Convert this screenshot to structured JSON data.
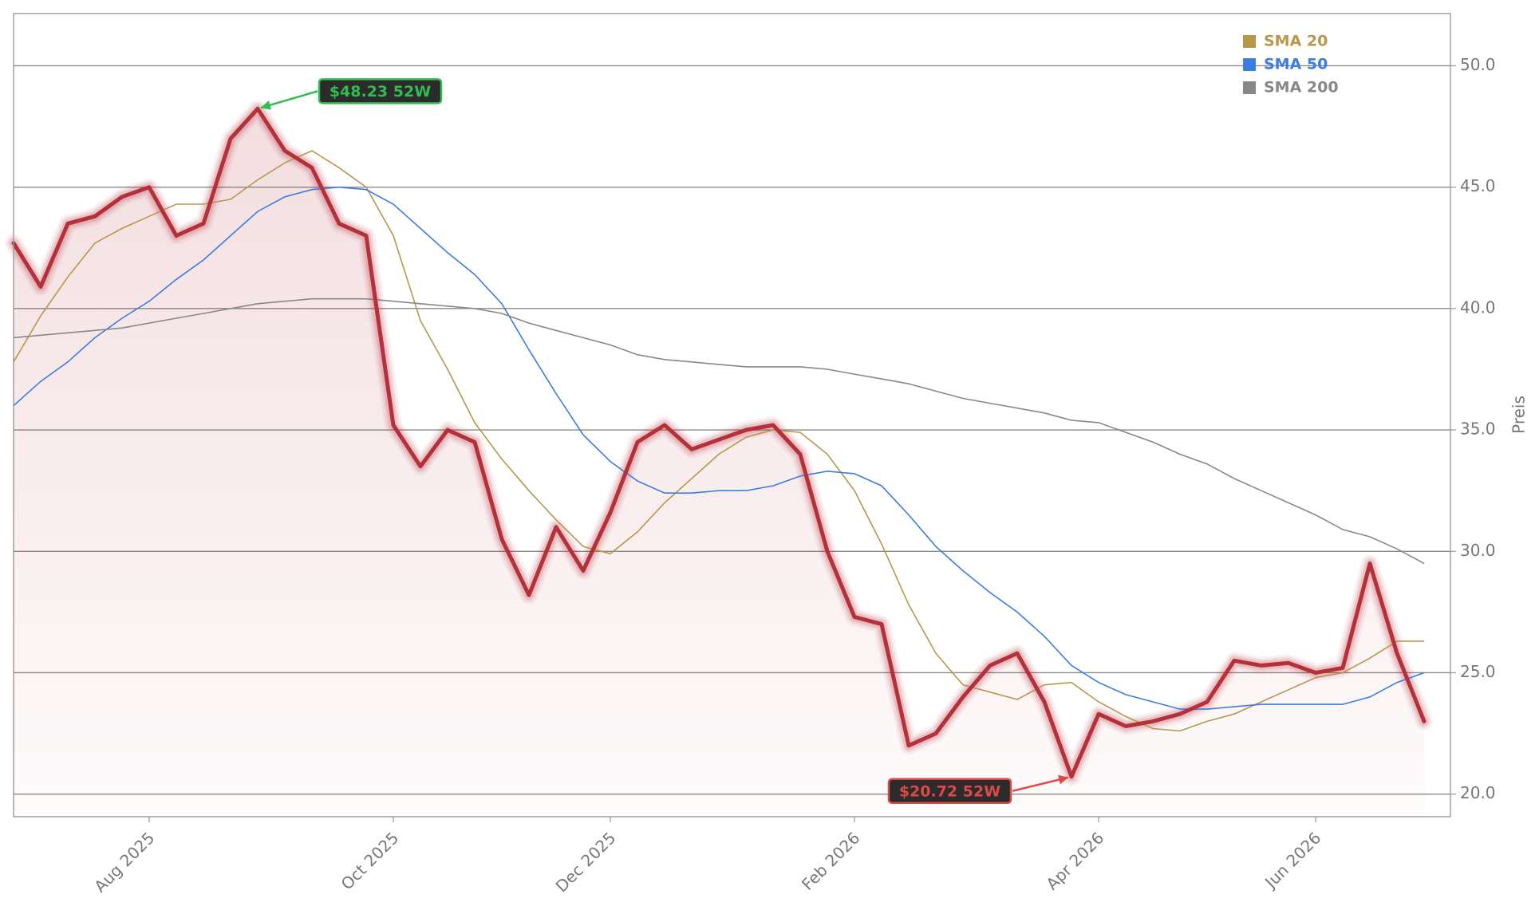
{
  "chart_data": {
    "type": "line",
    "y_label": "Preis",
    "categories": [
      null,
      null,
      null,
      null,
      null,
      "Aug 2025",
      null,
      null,
      null,
      null,
      null,
      null,
      null,
      null,
      "Oct 2025",
      null,
      null,
      null,
      null,
      null,
      null,
      null,
      "Dec 2025",
      null,
      null,
      null,
      null,
      null,
      null,
      null,
      null,
      "Feb 2026",
      null,
      null,
      null,
      null,
      null,
      null,
      null,
      null,
      "Apr 2026",
      null,
      null,
      null,
      null,
      null,
      null,
      null,
      "Jun 2026",
      null,
      null,
      null,
      null
    ],
    "price": {
      "color": "#b5303a",
      "values": [
        42.7,
        40.9,
        43.5,
        43.8,
        44.6,
        45.0,
        43.0,
        43.5,
        47.0,
        48.23,
        46.5,
        45.8,
        43.5,
        43.0,
        35.2,
        33.5,
        35.0,
        34.5,
        30.5,
        28.2,
        31.0,
        29.2,
        31.6,
        34.5,
        35.2,
        34.2,
        34.6,
        35.0,
        35.2,
        34.0,
        30.0,
        27.3,
        27.0,
        22.0,
        22.5,
        24.0,
        25.3,
        25.8,
        23.8,
        20.72,
        23.3,
        22.8,
        23.0,
        23.3,
        23.8,
        25.5,
        25.3,
        25.4,
        25.0,
        25.2,
        29.5,
        25.8,
        23.0
      ]
    },
    "series": [
      {
        "name": "SMA 20",
        "color": "#b8964a",
        "values": [
          37.8,
          39.7,
          41.3,
          42.7,
          43.3,
          43.8,
          44.3,
          44.3,
          44.5,
          45.3,
          46.0,
          46.5,
          45.8,
          45.0,
          43.0,
          39.5,
          37.5,
          35.3,
          33.8,
          32.5,
          31.3,
          30.2,
          29.9,
          30.8,
          32.0,
          33.0,
          34.0,
          34.7,
          35.0,
          34.9,
          34.0,
          32.5,
          30.3,
          27.8,
          25.8,
          24.5,
          24.2,
          23.9,
          24.5,
          24.6,
          23.8,
          23.2,
          22.7,
          22.6,
          23.0,
          23.3,
          23.8,
          24.3,
          24.8,
          25.0,
          25.6,
          26.3,
          26.3
        ]
      },
      {
        "name": "SMA 50",
        "color": "#3b7de0",
        "values": [
          36.0,
          37.0,
          37.8,
          38.8,
          39.6,
          40.3,
          41.2,
          42.0,
          43.0,
          44.0,
          44.6,
          44.9,
          45.0,
          44.9,
          44.3,
          43.3,
          42.3,
          41.4,
          40.2,
          38.3,
          36.5,
          34.8,
          33.7,
          32.9,
          32.4,
          32.4,
          32.5,
          32.5,
          32.7,
          33.1,
          33.3,
          33.2,
          32.7,
          31.5,
          30.2,
          29.2,
          28.3,
          27.5,
          26.5,
          25.3,
          24.6,
          24.1,
          23.8,
          23.5,
          23.5,
          23.6,
          23.7,
          23.7,
          23.7,
          23.7,
          24.0,
          24.6,
          25.0
        ]
      },
      {
        "name": "SMA 200",
        "color": "#888888",
        "values": [
          38.8,
          38.9,
          39.0,
          39.1,
          39.2,
          39.4,
          39.6,
          39.8,
          40.0,
          40.2,
          40.3,
          40.4,
          40.4,
          40.4,
          40.3,
          40.2,
          40.1,
          40.0,
          39.8,
          39.4,
          39.1,
          38.8,
          38.5,
          38.1,
          37.9,
          37.8,
          37.7,
          37.6,
          37.6,
          37.6,
          37.5,
          37.3,
          37.1,
          36.9,
          36.6,
          36.3,
          36.1,
          35.9,
          35.7,
          35.4,
          35.3,
          34.9,
          34.5,
          34.0,
          33.6,
          33.0,
          32.5,
          32.0,
          31.5,
          30.9,
          30.6,
          30.1,
          29.5
        ]
      }
    ],
    "annotations": [
      {
        "label": "$48.23 52W",
        "value": 48.23,
        "color": "#2ebd4e"
      },
      {
        "label": "$20.72 52W",
        "value": 20.72,
        "color": "#e04848"
      }
    ],
    "ylim": [
      19.07,
      52.15
    ],
    "yticks": [
      {
        "value": 20,
        "label": "20.0"
      },
      {
        "value": 25,
        "label": "25.0"
      },
      {
        "value": 30,
        "label": "30.0"
      },
      {
        "value": 35,
        "label": "35.0"
      },
      {
        "value": 40,
        "label": "40.0"
      },
      {
        "value": 45,
        "label": "45.0"
      },
      {
        "value": 50,
        "label": "50.0"
      }
    ],
    "grid": true,
    "legend": "upper right"
  }
}
